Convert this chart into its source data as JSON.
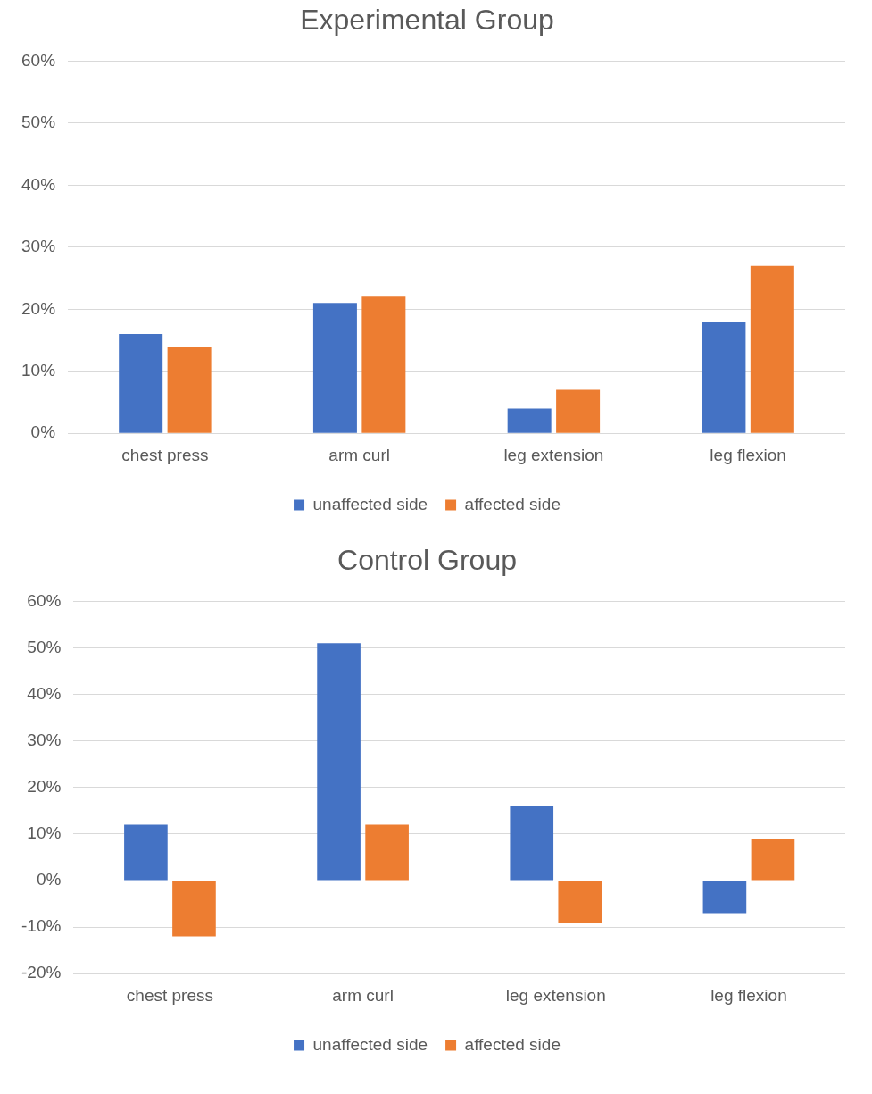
{
  "chart_data": [
    {
      "type": "bar",
      "title": "Experimental Group",
      "categories": [
        "chest press",
        "arm curl",
        "leg extension",
        "leg flexion"
      ],
      "series": [
        {
          "name": "unaffected side",
          "color": "#4472c4",
          "values": [
            16,
            21,
            4,
            18
          ]
        },
        {
          "name": "affected side",
          "color": "#ed7d31",
          "values": [
            14,
            22,
            7,
            27
          ]
        }
      ],
      "ylim": [
        0,
        60
      ],
      "yticks": [
        {
          "value": 0,
          "label": "0%"
        },
        {
          "value": 10,
          "label": "10%"
        },
        {
          "value": 20,
          "label": "20%"
        },
        {
          "value": 30,
          "label": "30%"
        },
        {
          "value": 40,
          "label": "40%"
        },
        {
          "value": 50,
          "label": "50%"
        },
        {
          "value": 60,
          "label": "60%"
        }
      ],
      "grid": "y",
      "legend": "bottom"
    },
    {
      "type": "bar",
      "title": "Control Group",
      "categories": [
        "chest press",
        "arm curl",
        "leg extension",
        "leg flexion"
      ],
      "series": [
        {
          "name": "unaffected side",
          "color": "#4472c4",
          "values": [
            12,
            51,
            16,
            -7
          ]
        },
        {
          "name": "affected side",
          "color": "#ed7d31",
          "values": [
            -12,
            12,
            -9,
            9
          ]
        }
      ],
      "ylim": [
        -20,
        60
      ],
      "yticks": [
        {
          "value": -20,
          "label": "-20%"
        },
        {
          "value": -10,
          "label": "-10%"
        },
        {
          "value": 0,
          "label": "0%"
        },
        {
          "value": 10,
          "label": "10%"
        },
        {
          "value": 20,
          "label": "20%"
        },
        {
          "value": 30,
          "label": "30%"
        },
        {
          "value": 40,
          "label": "40%"
        },
        {
          "value": 50,
          "label": "50%"
        },
        {
          "value": 60,
          "label": "60%"
        }
      ],
      "grid": "y",
      "legend": "bottom"
    }
  ]
}
